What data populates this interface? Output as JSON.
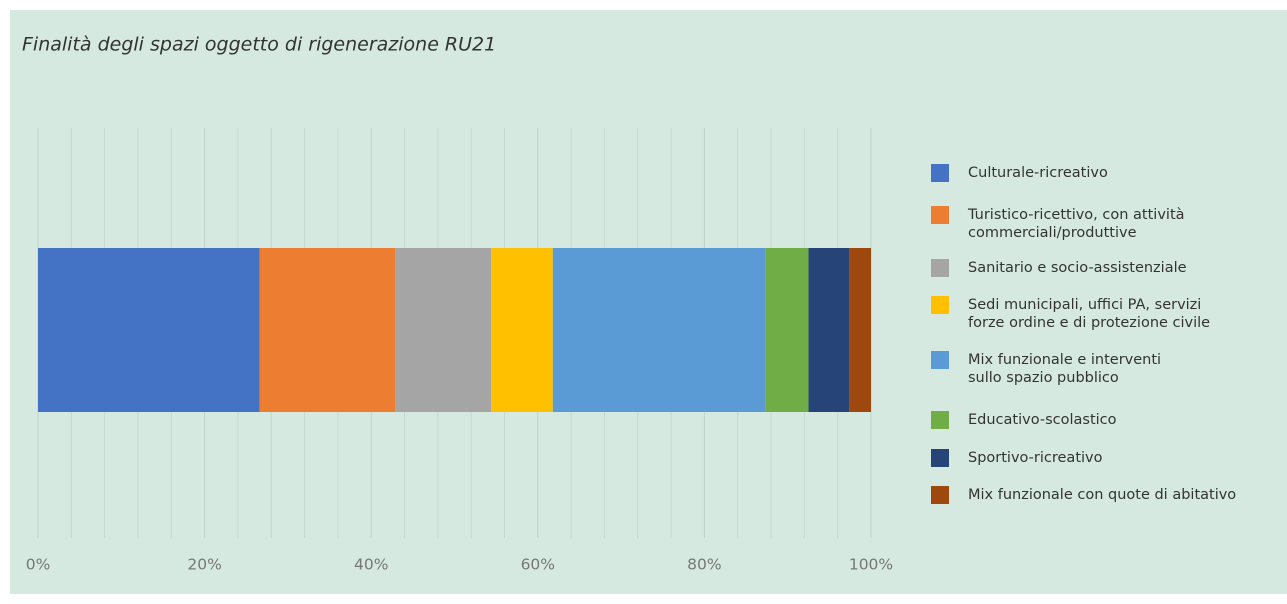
{
  "chart_data": {
    "type": "stacked_bar_horizontal",
    "title": "Finalità degli spazi oggetto di rigenerazione RU21",
    "series": [
      {
        "name": "Culturale-ricreativo",
        "color": "#4472c4",
        "values": [
          26.6
        ]
      },
      {
        "name": "Turistico-ricettivo, con attività\ncommerciali/produttive",
        "color": "#ed7d31",
        "values": [
          16.3
        ]
      },
      {
        "name": "Sanitario e socio-assistenziale",
        "color": "#a5a5a5",
        "values": [
          11.5
        ]
      },
      {
        "name": "Sedi municipali, uffici PA, servizi\nforze ordine e di protezione civile",
        "color": "#ffc000",
        "values": [
          7.4
        ]
      },
      {
        "name": "Mix funzionale e interventi\nsullo spazio pubblico",
        "color": "#5b9bd5",
        "values": [
          25.5
        ]
      },
      {
        "name": "Educativo-scolastico",
        "color": "#70ad47",
        "values": [
          5.2
        ]
      },
      {
        "name": "Sportivo-ricreativo",
        "color": "#264478",
        "values": [
          4.9
        ]
      },
      {
        "name": "Mix funzionale con quote di abitativo",
        "color": "#9e480e",
        "values": [
          2.6
        ]
      }
    ],
    "xlim": [
      0,
      100
    ],
    "xticks": [
      {
        "value": 0,
        "label": "0%"
      },
      {
        "value": 20,
        "label": "20%"
      },
      {
        "value": 40,
        "label": "40%"
      },
      {
        "value": 60,
        "label": "60%"
      },
      {
        "value": 80,
        "label": "80%"
      },
      {
        "value": 100,
        "label": "100%"
      }
    ],
    "minor_xticks": [
      4,
      8,
      12,
      16,
      24,
      28,
      32,
      36,
      44,
      48,
      52,
      56,
      64,
      68,
      72,
      76,
      84,
      88,
      92,
      96
    ],
    "grid": true,
    "legend": "right"
  }
}
